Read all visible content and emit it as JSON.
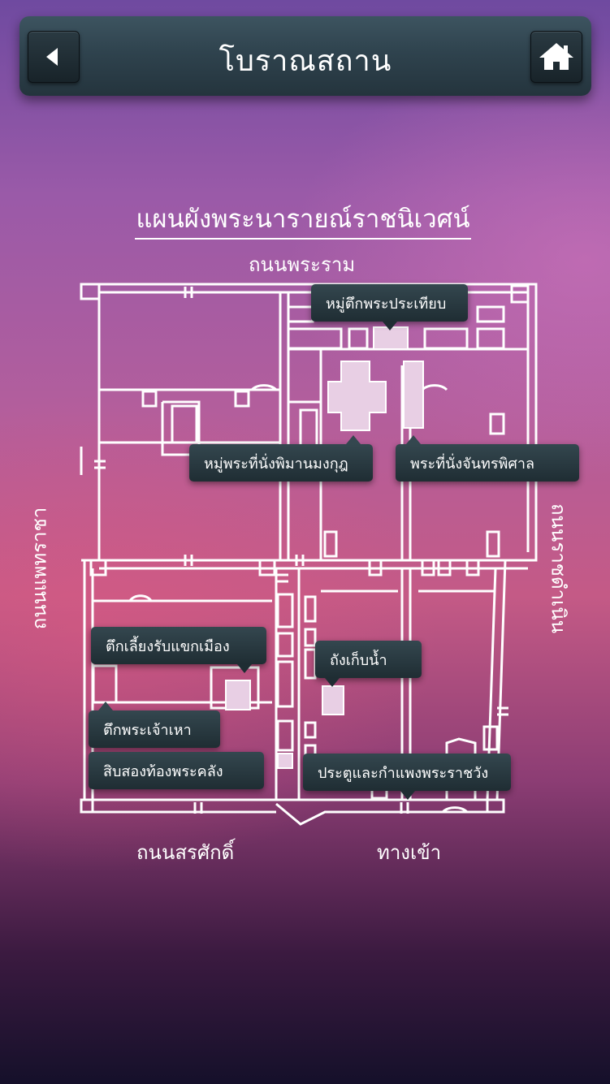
{
  "header": {
    "title": "โบราณสถาน",
    "back_icon": "back-arrow-icon",
    "home_icon": "home-icon"
  },
  "map": {
    "heading": "แผนผังพระนารายณ์ราชนิเวศน์",
    "roads": {
      "top": "ถนนพระราม",
      "left": "ถนนแพทราชา",
      "right": "ถนนราชดำเนิน",
      "bottom_left": "ถนนสรศักดิ์",
      "bottom_right": "ทางเข้า"
    },
    "labels": [
      {
        "id": "phra-thinang-hall-group",
        "text": "หมู่ตึกพระประเทียบ"
      },
      {
        "id": "phiman-mongkut",
        "text": "หมู่พระที่นั่งพิมานมงกุฎ"
      },
      {
        "id": "chan-phisan",
        "text": "พระที่นั่งจันทรพิศาล"
      },
      {
        "id": "reception-hall",
        "text": "ตึกเลี้ยงรับแขกเมือง"
      },
      {
        "id": "water-tank",
        "text": "ถังเก็บน้ำ"
      },
      {
        "id": "chao-hao",
        "text": "ตึกพระเจ้าเหา"
      },
      {
        "id": "treasury",
        "text": "สิบสองท้องพระคลัง"
      },
      {
        "id": "gate-wall",
        "text": "ประตูและกำแพงพระราชวัง"
      }
    ]
  },
  "colors": {
    "topbar": "#2f434e",
    "tooltip": "#24343d",
    "map_line": "#ffffff",
    "highlight": "#e8cfe4"
  }
}
